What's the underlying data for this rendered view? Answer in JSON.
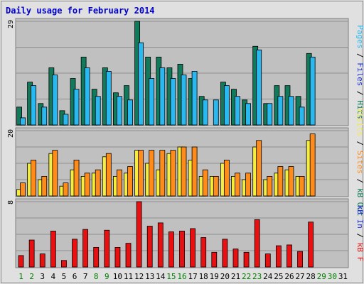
{
  "chart_data": [
    {
      "type": "bar",
      "title": "Daily usage for February 2014",
      "panel": "top",
      "ylabel_parts": [
        "Pages",
        "Files",
        "Hits"
      ],
      "ylabel_separator": " / ",
      "ymax_label": "29",
      "ylim": [
        0,
        29
      ],
      "categories": [
        "1",
        "2",
        "3",
        "4",
        "5",
        "6",
        "7",
        "8",
        "9",
        "10",
        "11",
        "12",
        "13",
        "14",
        "15",
        "16",
        "17",
        "18",
        "19",
        "20",
        "21",
        "22",
        "23",
        "24",
        "25",
        "26",
        "27",
        "28",
        "29",
        "30",
        "31"
      ],
      "series": [
        {
          "name": "Hits",
          "color": "#117a5a",
          "values": [
            5,
            12,
            6,
            16,
            4,
            13,
            19,
            10,
            16,
            9,
            11,
            29,
            19,
            19,
            16,
            17,
            13,
            8,
            0,
            12,
            10,
            7,
            22,
            6,
            11,
            11,
            8,
            20,
            null,
            null,
            null
          ]
        },
        {
          "name": "Files",
          "color": "#29b8f0",
          "values": [
            2,
            11,
            5,
            14,
            3,
            10,
            16,
            8,
            15,
            8,
            7,
            23,
            13,
            16,
            13,
            14,
            15,
            7,
            7,
            11,
            8,
            6,
            21,
            6,
            8,
            8,
            5,
            19,
            null,
            null,
            null
          ]
        }
      ]
    },
    {
      "type": "bar",
      "panel": "middle",
      "ylabel_parts": [
        "Visits",
        "Sites",
        "kB Out"
      ],
      "ylabel_separator": " / ",
      "ymax_label": "20",
      "ylim": [
        0,
        20
      ],
      "categories": [
        "1",
        "2",
        "3",
        "4",
        "5",
        "6",
        "7",
        "8",
        "9",
        "10",
        "11",
        "12",
        "13",
        "14",
        "15",
        "16",
        "17",
        "18",
        "19",
        "20",
        "21",
        "22",
        "23",
        "24",
        "25",
        "26",
        "27",
        "28",
        "29",
        "30",
        "31"
      ],
      "series": [
        {
          "name": "Visits",
          "color": "#f5ee3c",
          "values": [
            2,
            10,
            5,
            13,
            3,
            8,
            6,
            7,
            12,
            6,
            7,
            14,
            10,
            8,
            13,
            15,
            11,
            6,
            6,
            10,
            6,
            5,
            15,
            5,
            7,
            8,
            6,
            17,
            null,
            null,
            null
          ]
        },
        {
          "name": "Sites",
          "color": "#ff8c1a",
          "values": [
            4,
            11,
            6,
            14,
            4,
            11,
            7,
            8,
            13,
            8,
            9,
            14,
            14,
            14,
            14,
            15,
            15,
            8,
            6,
            11,
            7,
            7,
            17,
            6,
            9,
            9,
            6,
            19,
            null,
            null,
            null
          ]
        }
      ]
    },
    {
      "type": "bar",
      "panel": "bottom",
      "ylabel_parts": [
        "kB In",
        "kB F"
      ],
      "ylabel_separator": " / ",
      "ymax_label": "8",
      "ylim": [
        0,
        8
      ],
      "categories": [
        "1",
        "2",
        "3",
        "4",
        "5",
        "6",
        "7",
        "8",
        "9",
        "10",
        "11",
        "12",
        "13",
        "14",
        "15",
        "16",
        "17",
        "18",
        "19",
        "20",
        "21",
        "22",
        "23",
        "24",
        "25",
        "26",
        "27",
        "28",
        "29",
        "30",
        "31"
      ],
      "series": [
        {
          "name": "kB F",
          "color": "#e81010",
          "values": [
            1.4,
            3.3,
            1.6,
            4.4,
            0.8,
            3.4,
            4.6,
            2.4,
            4.5,
            2.4,
            2.9,
            8,
            5.0,
            5.4,
            4.3,
            4.4,
            4.7,
            3.6,
            1.8,
            3.4,
            2.2,
            1.8,
            5.8,
            1.6,
            2.6,
            2.7,
            1.9,
            5.5,
            null,
            null,
            null
          ]
        }
      ]
    }
  ],
  "colors": {
    "title": "#0000cc",
    "panel_bg": "#c0c0c0",
    "weekday": "#008000",
    "day": "#000000",
    "pages": "#29b8f0",
    "files": "#1a2fe0",
    "hits": "#117a5a",
    "visits": "#f5ee3c",
    "sites": "#ff8c1a",
    "kbout": "#117a5a",
    "kbin": "#1a2fe0",
    "kbf": "#e81010"
  },
  "weekend_days": [
    "1",
    "2",
    "8",
    "9",
    "15",
    "16",
    "22",
    "23",
    "29",
    "30"
  ]
}
